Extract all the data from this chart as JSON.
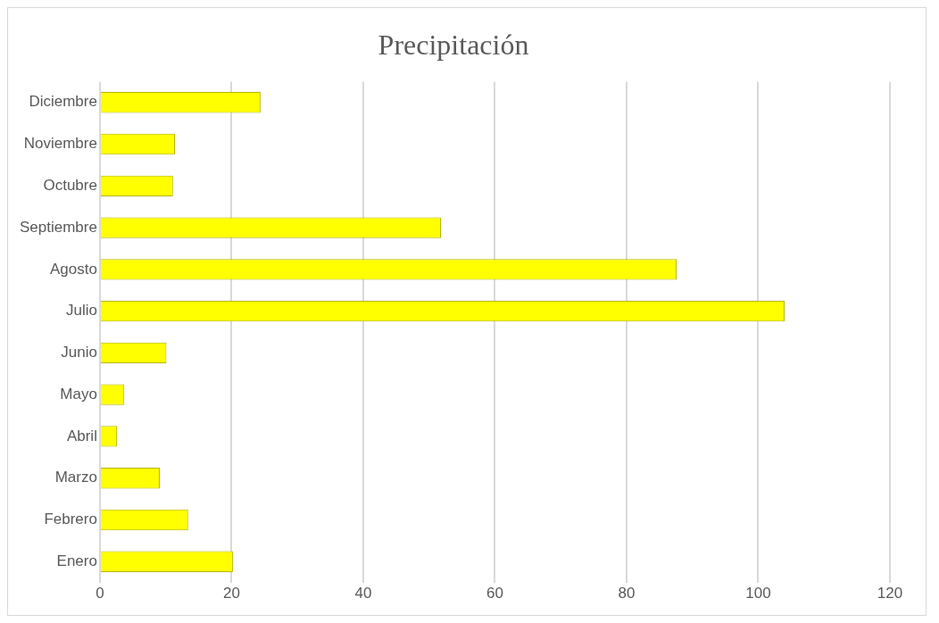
{
  "chart_data": {
    "type": "bar",
    "orientation": "horizontal",
    "title": "Precipitación",
    "categories": [
      "Diciembre",
      "Noviembre",
      "Octubre",
      "Septiembre",
      "Agosto",
      "Julio",
      "Junio",
      "Mayo",
      "Abril",
      "Marzo",
      "Febrero",
      "Enero"
    ],
    "values": [
      24.4,
      11.4,
      11.1,
      51.8,
      87.6,
      104,
      10.1,
      3.7,
      2.6,
      9.1,
      13.4,
      20.2
    ],
    "color": "#ffff00",
    "xlim": [
      0,
      120
    ],
    "xticks": [
      0,
      20,
      40,
      60,
      80,
      100,
      120
    ],
    "grid": "x",
    "legend": false
  }
}
